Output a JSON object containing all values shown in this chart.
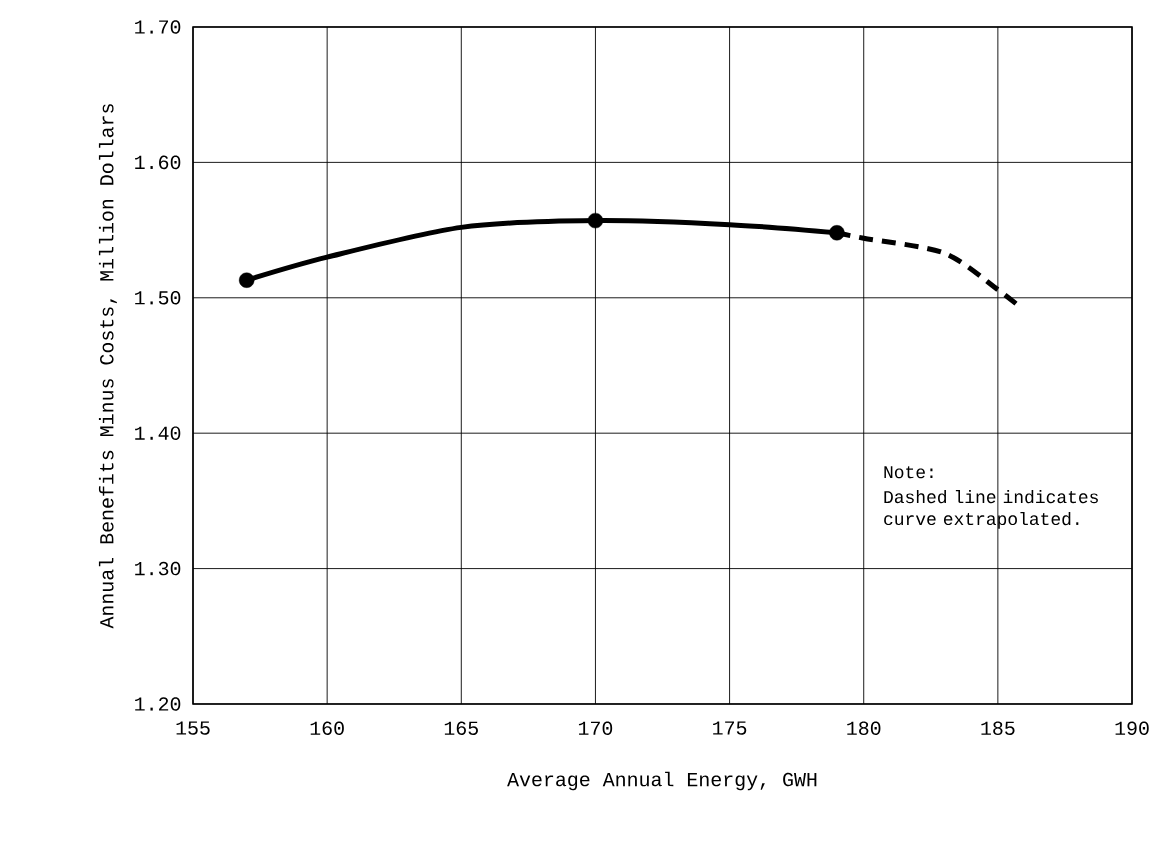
{
  "chart_data": {
    "type": "line",
    "xlabel": "Average Annual Energy, GWH",
    "ylabel": "Annual Benefits Minus Costs, Million Dollars",
    "xlim": [
      155,
      190
    ],
    "ylim": [
      1.2,
      1.7
    ],
    "xticks": [
      155,
      160,
      165,
      170,
      175,
      180,
      185,
      190
    ],
    "yticks": [
      {
        "value": 1.2,
        "label": "1.20"
      },
      {
        "value": 1.3,
        "label": "1.30"
      },
      {
        "value": 1.4,
        "label": "1.40"
      },
      {
        "value": 1.5,
        "label": "1.50"
      },
      {
        "value": 1.6,
        "label": "1.60"
      },
      {
        "value": 1.7,
        "label": "1.70"
      }
    ],
    "grid": true,
    "series": [
      {
        "color": "#000000",
        "line_style": "solid",
        "x": [
          157,
          160,
          165,
          170,
          175,
          179
        ],
        "values": [
          1.513,
          1.53,
          1.552,
          1.557,
          1.554,
          1.548
        ]
      },
      {
        "color": "#000000",
        "line_style": "dashed",
        "x": [
          179,
          180,
          183,
          185,
          185.9
        ],
        "values": [
          1.548,
          1.544,
          1.533,
          1.506,
          1.492
        ]
      },
      {
        "type": "scatter",
        "color": "#000000",
        "marker": "circle",
        "x": [
          157,
          170,
          179
        ],
        "values": [
          1.513,
          1.557,
          1.548
        ]
      }
    ],
    "annotations": [
      "Note:",
      "Dashed line indicates curve extrapolated."
    ]
  }
}
